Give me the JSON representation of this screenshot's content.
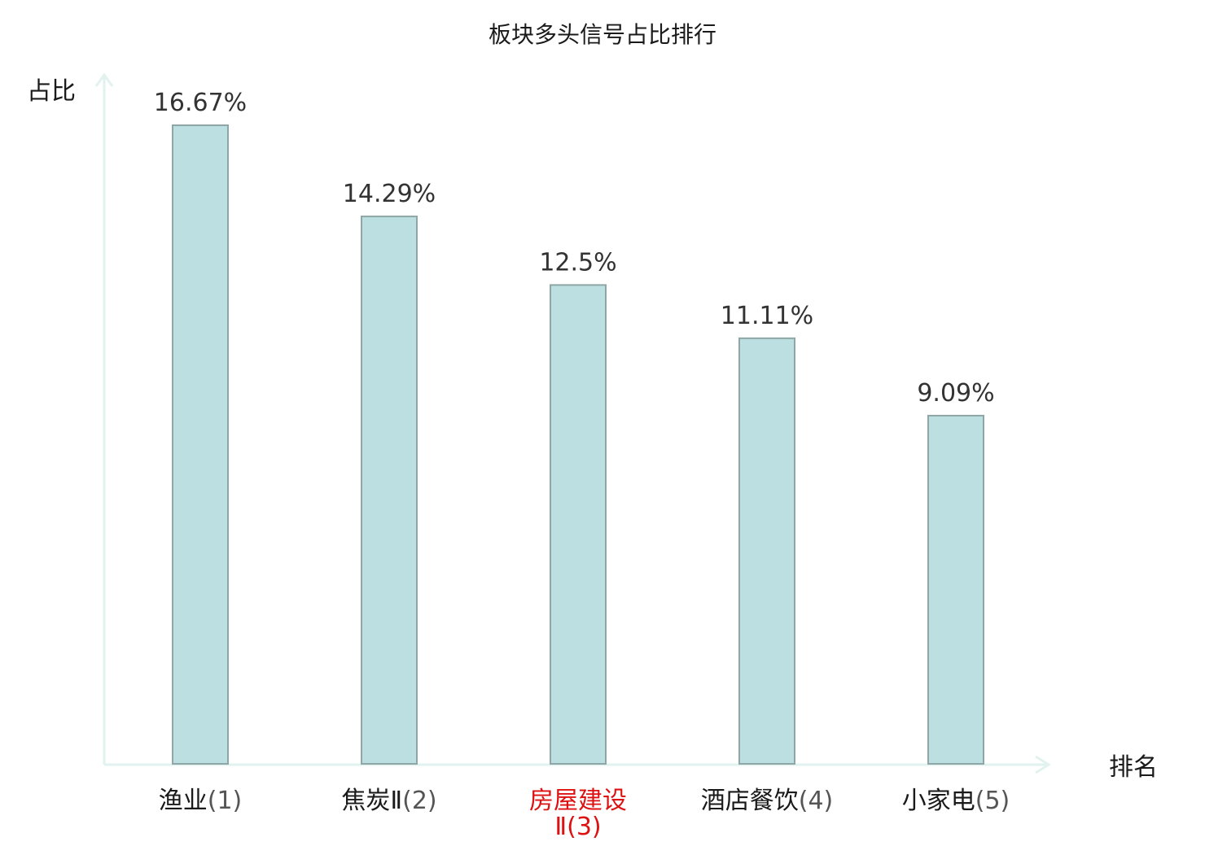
{
  "chart_data": {
    "type": "bar",
    "title": "板块多头信号占比排行",
    "xlabel": "排名",
    "ylabel": "占比",
    "categories": [
      {
        "name": "渔业",
        "rank": "(1)",
        "highlight": false
      },
      {
        "name": "焦炭Ⅱ",
        "rank": "(2)",
        "highlight": false
      },
      {
        "name": "房屋建设",
        "name_line2": "Ⅱ",
        "rank": "(3)",
        "highlight": true
      },
      {
        "name": "酒店餐饮",
        "rank": "(4)",
        "highlight": false
      },
      {
        "name": "小家电",
        "rank": "(5)",
        "highlight": false
      }
    ],
    "values": [
      16.67,
      14.29,
      12.5,
      11.11,
      9.09
    ],
    "value_labels": [
      "16.67%",
      "14.29%",
      "12.5%",
      "11.11%",
      "9.09%"
    ],
    "ylim": [
      0,
      16.67
    ],
    "grid": false,
    "legend": "none",
    "colors": {
      "bar_fill": "#bce0e1",
      "bar_stroke": "#8fa6a6",
      "axis": "#e2f2ef",
      "highlight_text": "#dd1111",
      "text": "#1a1a1a",
      "rank_text": "#555555",
      "value_text": "#333333"
    }
  }
}
